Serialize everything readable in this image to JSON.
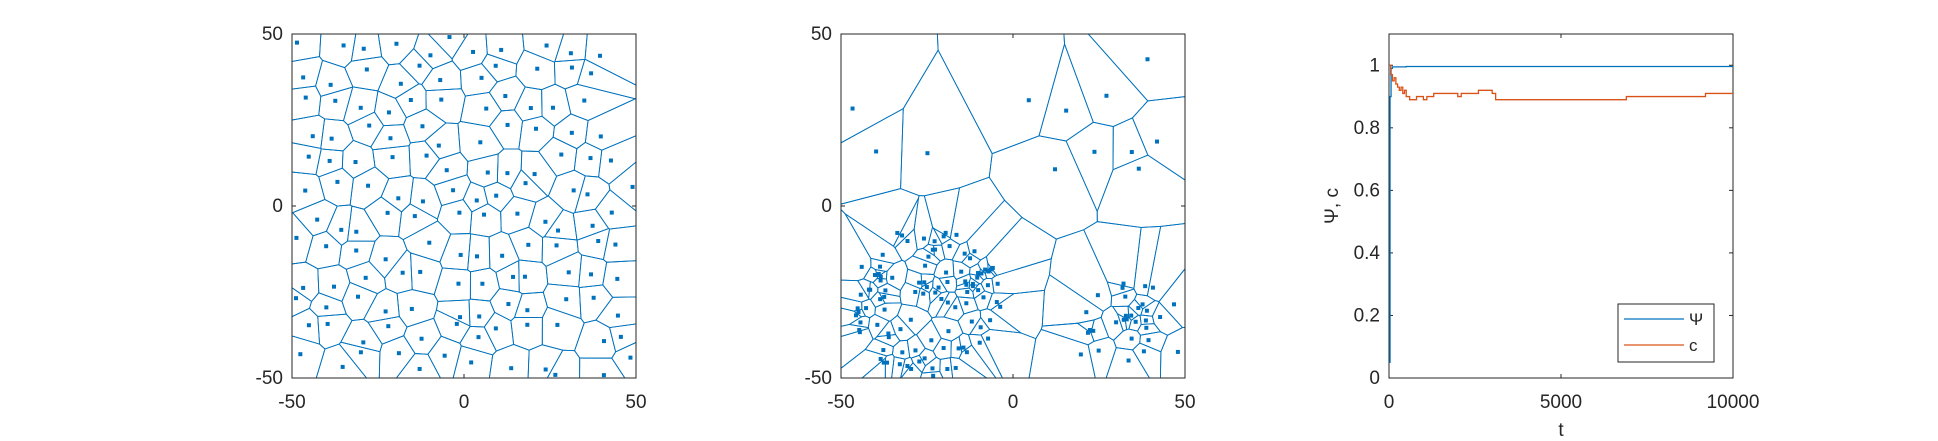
{
  "colors": {
    "blue": "#0072BD",
    "orange": "#D95319",
    "axis": "#262626"
  },
  "chart_data": [
    {
      "type": "scatter",
      "subtype": "voronoi",
      "xlim": [
        -50,
        50
      ],
      "ylim": [
        -50,
        50
      ],
      "xticks": [
        -50,
        0,
        50
      ],
      "yticks": [
        -50,
        0,
        50
      ],
      "xtick_labels": [
        "-50",
        "0",
        "50"
      ],
      "ytick_labels": [
        "-50",
        "0",
        "50"
      ],
      "distribution": "uniform",
      "seed": 7,
      "n_points": 140
    },
    {
      "type": "scatter",
      "subtype": "voronoi",
      "xlim": [
        -50,
        50
      ],
      "ylim": [
        -50,
        50
      ],
      "xticks": [
        -50,
        0,
        50
      ],
      "yticks": [
        -50,
        0,
        50
      ],
      "xtick_labels": [
        "-50",
        "0",
        "50"
      ],
      "ytick_labels": [
        "-50",
        "0",
        "50"
      ],
      "distribution": "clustered",
      "seed": 23,
      "clusters": [
        {
          "cx": -25,
          "cy": -28,
          "r": 22,
          "n": 95
        },
        {
          "cx": 35,
          "cy": -35,
          "r": 15,
          "n": 26
        }
      ],
      "n_background": 22
    },
    {
      "type": "line",
      "xlabel": "t",
      "ylabel": "Ψ, c",
      "xlim": [
        0,
        10000
      ],
      "ylim": [
        0,
        1.1
      ],
      "xticks": [
        0,
        5000,
        10000
      ],
      "xtick_labels": [
        "0",
        "5000",
        "10000"
      ],
      "yticks": [
        0,
        0.2,
        0.4,
        0.6,
        0.8,
        1
      ],
      "ytick_labels": [
        "0",
        "0.2",
        "0.4",
        "0.6",
        "0.8",
        "1"
      ],
      "legend_position": "bottom-right",
      "series": [
        {
          "name": "Ψ",
          "color": "#0072BD",
          "x": [
            0,
            30,
            60,
            100,
            200,
            500,
            1000,
            2000,
            3000,
            5000,
            7000,
            9000,
            10000
          ],
          "y": [
            0.05,
            0.9,
            0.99,
            0.995,
            0.995,
            0.996,
            0.996,
            0.996,
            0.996,
            0.996,
            0.996,
            0.996,
            0.996
          ]
        },
        {
          "name": "c",
          "color": "#D95319",
          "x": [
            0,
            50,
            100,
            150,
            200,
            250,
            300,
            350,
            400,
            450,
            500,
            600,
            700,
            800,
            1000,
            1100,
            1200,
            1300,
            1500,
            1700,
            1900,
            2000,
            2100,
            2300,
            2600,
            2800,
            3000,
            3100,
            3500,
            4000,
            5000,
            6000,
            6800,
            6900,
            7500,
            8500,
            9100,
            9200,
            9500,
            10000
          ],
          "y": [
            1.0,
            0.97,
            0.95,
            0.96,
            0.94,
            0.93,
            0.92,
            0.93,
            0.91,
            0.92,
            0.9,
            0.89,
            0.89,
            0.9,
            0.89,
            0.9,
            0.9,
            0.91,
            0.91,
            0.91,
            0.91,
            0.9,
            0.91,
            0.91,
            0.92,
            0.92,
            0.91,
            0.89,
            0.89,
            0.89,
            0.89,
            0.89,
            0.89,
            0.9,
            0.9,
            0.9,
            0.9,
            0.91,
            0.91,
            0.91
          ]
        }
      ]
    }
  ]
}
